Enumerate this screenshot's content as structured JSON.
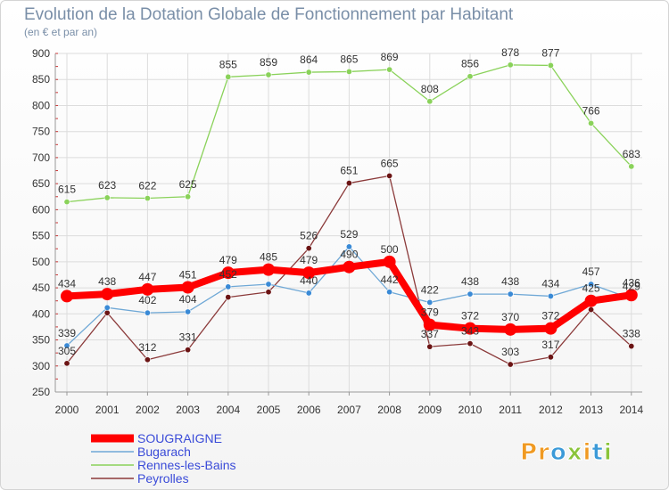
{
  "chart_data": {
    "type": "line",
    "title": "Evolution de la Dotation Globale de Fonctionnement par Habitant",
    "subtitle": "(en € et par an)",
    "x": [
      "2000",
      "2001",
      "2002",
      "2003",
      "2004",
      "2005",
      "2006",
      "2007",
      "2008",
      "2009",
      "2010",
      "2011",
      "2012",
      "2013",
      "2014"
    ],
    "ylim": [
      250,
      900
    ],
    "yticks": [
      250,
      300,
      350,
      400,
      450,
      500,
      550,
      600,
      650,
      700,
      750,
      800,
      850,
      900
    ],
    "grid": true,
    "series": [
      {
        "name": "Rennes-les-Bains",
        "color": "#8ad25a",
        "dot": "#8ad25a",
        "values": [
          615,
          623,
          622,
          625,
          855,
          859,
          864,
          865,
          869,
          808,
          856,
          878,
          877,
          766,
          683
        ],
        "labels": [
          "615",
          "623",
          "622",
          "625",
          "855",
          "859",
          "864",
          "865",
          "869",
          "808",
          "856",
          "878",
          "877",
          "766",
          "683"
        ]
      },
      {
        "name": "Peyrolles",
        "color": "#8b3a3a",
        "dot": "#6b1414",
        "values": [
          305,
          402,
          312,
          331,
          432,
          442,
          526,
          651,
          665,
          337,
          343,
          303,
          317,
          408,
          338
        ],
        "labels": [
          "305",
          "",
          "312",
          "331",
          "",
          "",
          "526",
          "651",
          "665",
          "337",
          "343",
          "303",
          "317",
          "",
          "338"
        ]
      },
      {
        "name": "Bugarach",
        "color": "#6fa8d6",
        "dot": "#3a8ad6",
        "values": [
          339,
          412,
          402,
          404,
          452,
          457,
          440,
          529,
          442,
          422,
          438,
          438,
          434,
          457,
          429
        ],
        "labels": [
          "339",
          "",
          "402",
          "404",
          "452",
          "",
          "440",
          "529",
          "442",
          "422",
          "438",
          "438",
          "434",
          "457",
          "429"
        ]
      },
      {
        "name": "SOUGRAIGNE",
        "color": "#ff0000",
        "dot": "#ff0000",
        "values": [
          434,
          438,
          447,
          451,
          479,
          485,
          479,
          490,
          500,
          379,
          372,
          370,
          372,
          425,
          436
        ],
        "labels": [
          "434",
          "438",
          "447",
          "451",
          "479",
          "485",
          "479",
          "490",
          "500",
          "379",
          "372",
          "370",
          "372",
          "425",
          "436"
        ]
      }
    ],
    "legend": [
      "SOUGRAIGNE",
      "Bugarach",
      "Rennes-les-Bains",
      "Peyrolles"
    ],
    "legend_position": "bottom-left"
  },
  "brand": {
    "p1": "Pr",
    "o": "o",
    "x": "x",
    "i1": "i",
    "t": "t",
    "i2": "i"
  }
}
